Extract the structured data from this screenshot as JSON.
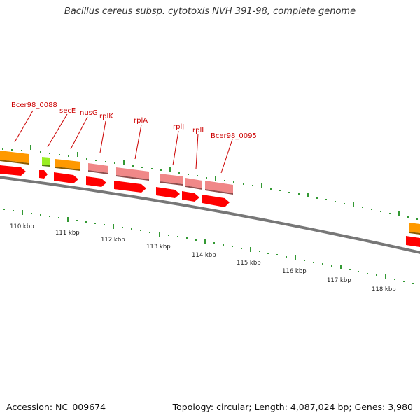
{
  "title": "Bacillus cereus subsp. cytotoxis NVH 391-98, complete genome",
  "footer": {
    "accession": "Accession: NC_009674",
    "stats": "Topology: circular; Length: 4,087,024 bp; Genes: 3,980"
  },
  "colors": {
    "cds_orange": "#ff9900",
    "cds_green": "#99ee22",
    "cds_pink": "#f08888",
    "cds_red": "#ff0000",
    "label_red": "#cc0000",
    "tick_green": "#339933",
    "backbone_gray": "#777777"
  },
  "gene_labels": [
    {
      "id": "bcer98-0088",
      "text": "Bcer98_0088"
    },
    {
      "id": "sece",
      "text": "secE"
    },
    {
      "id": "nusg",
      "text": "nusG"
    },
    {
      "id": "rplk",
      "text": "rplK"
    },
    {
      "id": "rpla",
      "text": "rplA"
    },
    {
      "id": "rplj",
      "text": "rplJ"
    },
    {
      "id": "rpll",
      "text": "rplL"
    },
    {
      "id": "bcer98-0095",
      "text": "Bcer98_0095"
    }
  ],
  "kbp_labels": [
    "110 kbp",
    "111 kbp",
    "112 kbp",
    "113 kbp",
    "114 kbp",
    "115 kbp",
    "116 kbp",
    "117 kbp",
    "118 kbp"
  ]
}
